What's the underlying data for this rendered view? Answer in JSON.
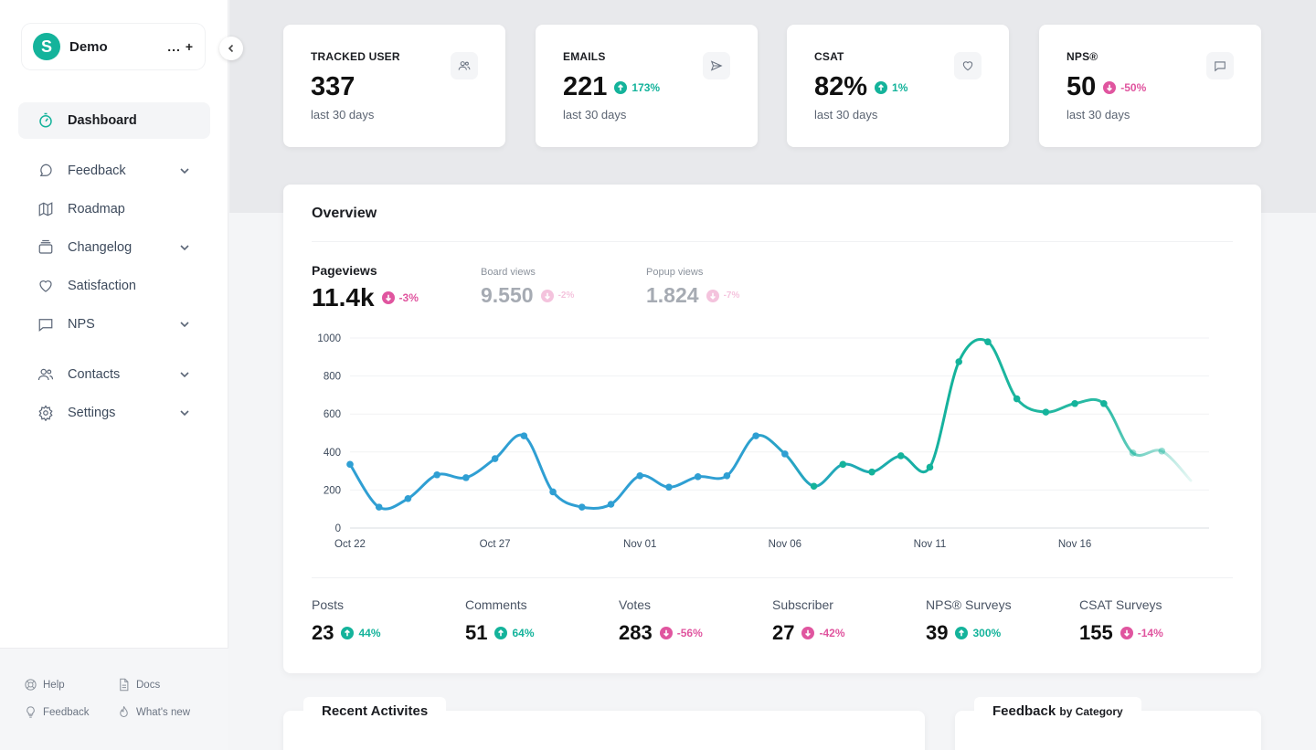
{
  "workspace": {
    "avatar_letter": "S",
    "name": "Demo",
    "actions": "... +"
  },
  "nav": [
    {
      "label": "Dashboard",
      "icon": "dashboard-icon",
      "active": true,
      "has_chevron": false
    },
    {
      "label": "Feedback",
      "icon": "feedback-icon",
      "has_chevron": true
    },
    {
      "label": "Roadmap",
      "icon": "map-icon",
      "has_chevron": false
    },
    {
      "label": "Changelog",
      "icon": "changelog-icon",
      "has_chevron": true
    },
    {
      "label": "Satisfaction",
      "icon": "heart-icon",
      "has_chevron": false
    },
    {
      "label": "NPS",
      "icon": "chat-icon",
      "has_chevron": true
    },
    {
      "label": "Contacts",
      "icon": "users-icon",
      "has_chevron": true
    },
    {
      "label": "Settings",
      "icon": "gear-icon",
      "has_chevron": true
    }
  ],
  "footer": {
    "help": "Help",
    "docs": "Docs",
    "feedback": "Feedback",
    "whats_new": "What's new"
  },
  "stats": [
    {
      "title": "TRACKED USER",
      "value": "337",
      "delta": "",
      "direction": "",
      "sub": "last 30 days",
      "icon": "users-icon"
    },
    {
      "title": "EMAILS",
      "value": "221",
      "delta": "173%",
      "direction": "up",
      "sub": "last 30 days",
      "icon": "send-icon"
    },
    {
      "title": "CSAT",
      "value": "82%",
      "delta": "1%",
      "direction": "up",
      "sub": "last 30 days",
      "icon": "heart-icon"
    },
    {
      "title": "NPS®",
      "value": "50",
      "delta": "-50%",
      "direction": "down",
      "sub": "last 30 days",
      "icon": "chat-icon"
    }
  ],
  "overview": {
    "title": "Overview",
    "pageviews": {
      "label": "Pageviews",
      "value": "11.4k",
      "delta": "-3%"
    },
    "board_views": {
      "label": "Board views",
      "value": "9.550",
      "delta": "-2%"
    },
    "popup_views": {
      "label": "Popup views",
      "value": "1.824",
      "delta": "-7%"
    }
  },
  "chart_data": {
    "type": "line",
    "x": [
      "Oct 22",
      "Oct 23",
      "Oct 24",
      "Oct 25",
      "Oct 26",
      "Oct 27",
      "Oct 28",
      "Oct 29",
      "Oct 30",
      "Oct 31",
      "Nov 01",
      "Nov 02",
      "Nov 03",
      "Nov 04",
      "Nov 05",
      "Nov 06",
      "Nov 07",
      "Nov 08",
      "Nov 09",
      "Nov 10",
      "Nov 11",
      "Nov 12",
      "Nov 13",
      "Nov 14",
      "Nov 15",
      "Nov 16",
      "Nov 17",
      "Nov 18",
      "Nov 19",
      "Nov 20"
    ],
    "series": [
      {
        "values": [
          335,
          110,
          155,
          280,
          265,
          365,
          485,
          190,
          110,
          125,
          275,
          215,
          270,
          275,
          485,
          390,
          220,
          335,
          295,
          380,
          320,
          875,
          980,
          680,
          610,
          655,
          655,
          395,
          405,
          250
        ]
      }
    ],
    "xticks": [
      "Oct 22",
      "Oct 27",
      "Nov 01",
      "Nov 06",
      "Nov 11",
      "Nov 16"
    ],
    "yticks": [
      0,
      200,
      400,
      600,
      800,
      1000
    ],
    "ylim": [
      0,
      1000
    ],
    "grid": true,
    "colors": {
      "start": "#2f9fd3",
      "end": "#14b39b"
    }
  },
  "bottom_stats": [
    {
      "label": "Posts",
      "value": "23",
      "delta": "44%",
      "direction": "up"
    },
    {
      "label": "Comments",
      "value": "51",
      "delta": "64%",
      "direction": "up"
    },
    {
      "label": "Votes",
      "value": "283",
      "delta": "-56%",
      "direction": "down"
    },
    {
      "label": "Subscriber",
      "value": "27",
      "delta": "-42%",
      "direction": "down"
    },
    {
      "label": "NPS® Surveys",
      "value": "39",
      "delta": "300%",
      "direction": "up"
    },
    {
      "label": "CSAT Surveys",
      "value": "155",
      "delta": "-14%",
      "direction": "down"
    }
  ],
  "recent": {
    "title": "Recent Activites"
  },
  "feedback_category": {
    "title": "Feedback",
    "suffix": "by Category"
  },
  "colors": {
    "accent": "#14b39b",
    "negative": "#e0559f",
    "line_blue": "#2f9fd3"
  }
}
